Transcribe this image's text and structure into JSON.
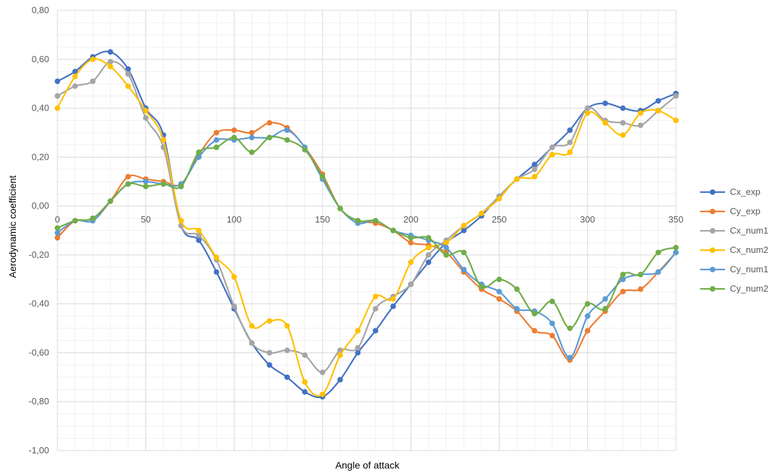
{
  "chart_data": {
    "type": "line",
    "xlabel": "Angle of attack",
    "ylabel": "Aerodynamic coefficient",
    "xlim": [
      0,
      350
    ],
    "ylim": [
      -1.0,
      0.8
    ],
    "x_major_ticks": [
      0,
      50,
      100,
      150,
      200,
      250,
      300,
      350
    ],
    "x_tick_labels": [
      "0",
      "50",
      "100",
      "150",
      "200",
      "250",
      "300",
      "350"
    ],
    "y_major_ticks": [
      -1.0,
      -0.8,
      -0.6,
      -0.4,
      -0.2,
      0.0,
      0.2,
      0.4,
      0.6,
      0.8
    ],
    "y_tick_labels": [
      "-1,00",
      "-0,80",
      "-0,60",
      "-0,40",
      "-0,20",
      "0,00",
      "0,20",
      "0,40",
      "0,60",
      "0,80"
    ],
    "grid": "major and minor",
    "legend_position": "right",
    "x": [
      0,
      10,
      20,
      30,
      40,
      50,
      60,
      70,
      80,
      90,
      100,
      110,
      120,
      130,
      140,
      150,
      160,
      170,
      180,
      190,
      200,
      210,
      220,
      230,
      240,
      250,
      260,
      270,
      280,
      290,
      300,
      310,
      320,
      330,
      340,
      350
    ],
    "series": [
      {
        "name": "Cx_exp",
        "color": "#4472C4",
        "values": [
          0.51,
          0.55,
          0.61,
          0.63,
          0.56,
          0.4,
          0.29,
          -0.08,
          -0.14,
          -0.27,
          -0.42,
          -0.56,
          -0.65,
          -0.7,
          -0.76,
          -0.78,
          -0.71,
          -0.6,
          -0.51,
          -0.41,
          -0.32,
          -0.23,
          -0.15,
          -0.1,
          -0.04,
          0.04,
          0.11,
          0.17,
          0.24,
          0.31,
          0.4,
          0.42,
          0.4,
          0.39,
          0.43,
          0.46
        ]
      },
      {
        "name": "Cy_exp",
        "color": "#ED7D31",
        "values": [
          -0.13,
          -0.06,
          -0.06,
          0.02,
          0.12,
          0.11,
          0.1,
          0.09,
          0.21,
          0.3,
          0.31,
          0.3,
          0.34,
          0.32,
          0.24,
          0.13,
          -0.01,
          -0.06,
          -0.07,
          -0.1,
          -0.15,
          -0.16,
          -0.19,
          -0.27,
          -0.34,
          -0.38,
          -0.43,
          -0.51,
          -0.53,
          -0.63,
          -0.51,
          -0.43,
          -0.35,
          -0.34,
          -0.27,
          -0.19
        ]
      },
      {
        "name": "Cx_num1",
        "color": "#A5A5A5",
        "values": [
          0.45,
          0.49,
          0.51,
          0.59,
          0.54,
          0.36,
          0.24,
          -0.08,
          -0.12,
          -0.22,
          -0.41,
          -0.56,
          -0.6,
          -0.59,
          -0.61,
          -0.68,
          -0.59,
          -0.58,
          -0.42,
          -0.37,
          -0.32,
          -0.2,
          -0.14,
          -0.08,
          -0.03,
          0.04,
          0.11,
          0.15,
          0.24,
          0.26,
          0.4,
          0.35,
          0.34,
          0.33,
          0.39,
          0.45
        ]
      },
      {
        "name": "Cx_num2",
        "color": "#FFC000",
        "values": [
          0.4,
          0.53,
          0.6,
          0.57,
          0.49,
          0.39,
          0.27,
          -0.06,
          -0.1,
          -0.21,
          -0.29,
          -0.49,
          -0.47,
          -0.49,
          -0.72,
          -0.77,
          -0.61,
          -0.51,
          -0.37,
          -0.38,
          -0.23,
          -0.17,
          -0.15,
          -0.08,
          -0.03,
          0.03,
          0.11,
          0.12,
          0.21,
          0.22,
          0.38,
          0.34,
          0.29,
          0.38,
          0.39,
          0.35
        ]
      },
      {
        "name": "Cy_num1",
        "color": "#5B9BD5",
        "values": [
          -0.11,
          -0.06,
          -0.06,
          0.02,
          0.09,
          0.1,
          0.09,
          0.09,
          0.2,
          0.27,
          0.27,
          0.28,
          0.28,
          0.31,
          0.24,
          0.11,
          -0.01,
          -0.07,
          -0.06,
          -0.1,
          -0.12,
          -0.14,
          -0.17,
          -0.26,
          -0.32,
          -0.35,
          -0.42,
          -0.43,
          -0.48,
          -0.62,
          -0.45,
          -0.38,
          -0.3,
          -0.28,
          -0.27,
          -0.19
        ]
      },
      {
        "name": "Cy_num2",
        "color": "#70AD47",
        "values": [
          -0.09,
          -0.06,
          -0.05,
          0.02,
          0.09,
          0.08,
          0.09,
          0.08,
          0.22,
          0.24,
          0.28,
          0.22,
          0.28,
          0.27,
          0.23,
          0.12,
          -0.01,
          -0.06,
          -0.06,
          -0.1,
          -0.13,
          -0.13,
          -0.2,
          -0.19,
          -0.33,
          -0.3,
          -0.34,
          -0.44,
          -0.39,
          -0.5,
          -0.4,
          -0.42,
          -0.28,
          -0.28,
          -0.19,
          -0.17
        ]
      }
    ]
  }
}
